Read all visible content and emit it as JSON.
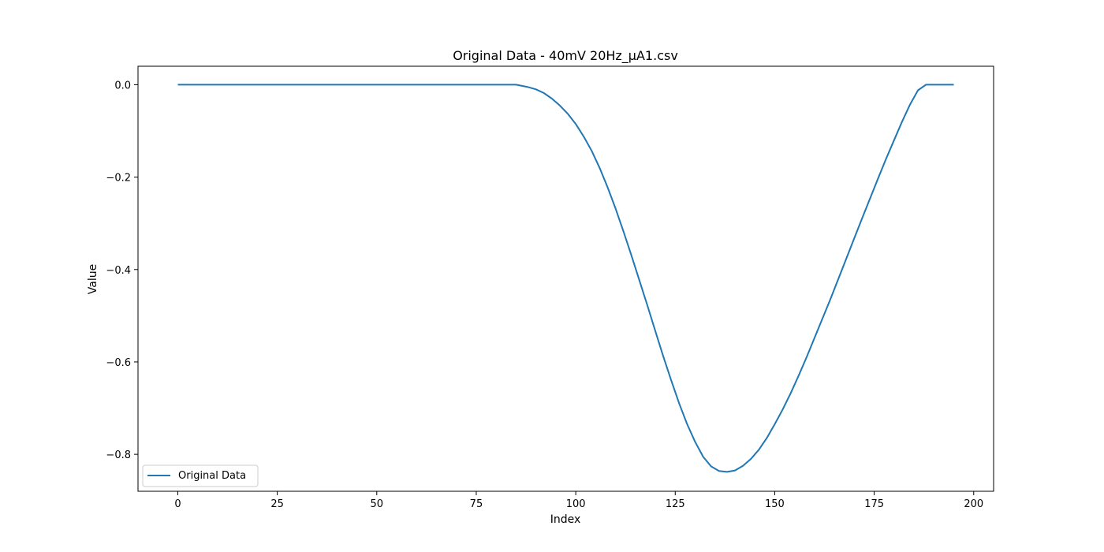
{
  "chart_data": {
    "type": "line",
    "title": "Original Data - 40mV 20Hz_μA1.csv",
    "xlabel": "Index",
    "ylabel": "Value",
    "xlim": [
      -10,
      205
    ],
    "ylim": [
      -0.88,
      0.04
    ],
    "xticks": [
      0,
      25,
      50,
      75,
      100,
      125,
      150,
      175,
      200
    ],
    "yticks": [
      0.0,
      -0.2,
      -0.4,
      -0.6,
      -0.8
    ],
    "ytick_labels": [
      "0.0",
      "−0.2",
      "−0.4",
      "−0.6",
      "−0.8"
    ],
    "grid": false,
    "legend": {
      "position": "lower-left",
      "entries": [
        "Original Data"
      ]
    },
    "series": [
      {
        "name": "Original Data",
        "color": "#1f77b4",
        "x": [
          0,
          5,
          10,
          15,
          20,
          25,
          30,
          35,
          40,
          45,
          50,
          55,
          60,
          65,
          70,
          75,
          80,
          85,
          88,
          90,
          92,
          94,
          96,
          98,
          100,
          102,
          104,
          106,
          108,
          110,
          112,
          114,
          116,
          118,
          120,
          122,
          124,
          126,
          128,
          130,
          132,
          134,
          136,
          138,
          140,
          142,
          144,
          146,
          148,
          150,
          152,
          154,
          156,
          158,
          160,
          162,
          164,
          166,
          168,
          170,
          172,
          174,
          176,
          178,
          180,
          182,
          184,
          186,
          188,
          190,
          192,
          194,
          195
        ],
        "y": [
          0.0,
          0.0,
          0.0,
          0.0,
          0.0,
          0.0,
          0.0,
          0.0,
          0.0,
          0.0,
          0.0,
          0.0,
          0.0,
          0.0,
          0.0,
          0.0,
          0.0,
          0.0,
          -0.005,
          -0.01,
          -0.018,
          -0.03,
          -0.045,
          -0.063,
          -0.085,
          -0.112,
          -0.143,
          -0.18,
          -0.222,
          -0.268,
          -0.318,
          -0.37,
          -0.424,
          -0.478,
          -0.533,
          -0.588,
          -0.64,
          -0.69,
          -0.735,
          -0.773,
          -0.805,
          -0.826,
          -0.836,
          -0.838,
          -0.835,
          -0.825,
          -0.81,
          -0.79,
          -0.765,
          -0.735,
          -0.703,
          -0.668,
          -0.63,
          -0.59,
          -0.548,
          -0.506,
          -0.464,
          -0.42,
          -0.376,
          -0.332,
          -0.288,
          -0.245,
          -0.202,
          -0.16,
          -0.12,
          -0.08,
          -0.043,
          -0.012,
          0.0,
          0.0,
          0.0,
          0.0,
          0.0
        ]
      }
    ]
  }
}
